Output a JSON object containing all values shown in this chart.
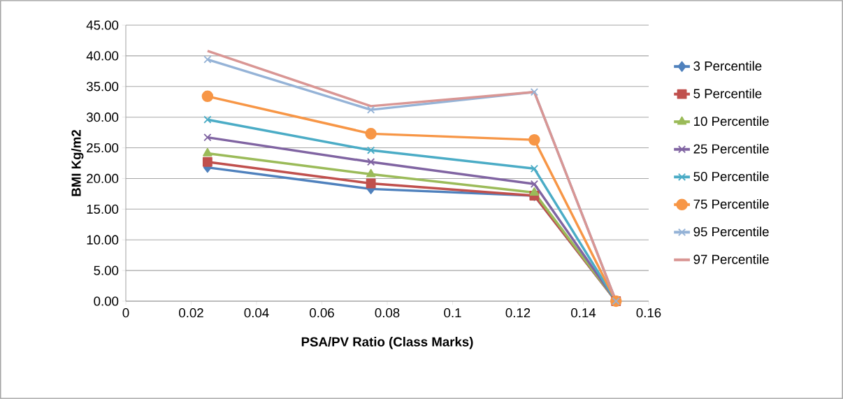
{
  "chart_data": {
    "type": "line",
    "xlabel": "PSA/PV Ratio (Class Marks)",
    "ylabel": "BMI Kg/m2",
    "x": [
      0.025,
      0.075,
      0.125,
      0.15
    ],
    "xlim": [
      0,
      0.16
    ],
    "xticks": [
      0,
      0.02,
      0.04,
      0.06,
      0.08,
      0.1,
      0.12,
      0.14,
      0.16
    ],
    "ylim": [
      0,
      45
    ],
    "yticks": [
      {
        "value": 0,
        "label": "0.00"
      },
      {
        "value": 5,
        "label": "5.00"
      },
      {
        "value": 10,
        "label": "10.00"
      },
      {
        "value": 15,
        "label": "15.00"
      },
      {
        "value": 20,
        "label": "20.00"
      },
      {
        "value": 25,
        "label": "25.00"
      },
      {
        "value": 30,
        "label": "30.00"
      },
      {
        "value": 35,
        "label": "35.00"
      },
      {
        "value": 40,
        "label": "40.00"
      },
      {
        "value": 45,
        "label": "45.00"
      }
    ],
    "grid": "y",
    "legend": "right",
    "series": [
      {
        "name": "3 Percentile",
        "color": "#4f81bd",
        "marker": "diamond",
        "values": [
          21.8,
          18.3,
          17.2,
          0
        ]
      },
      {
        "name": "5 Percentile",
        "color": "#c0504d",
        "marker": "square",
        "values": [
          22.7,
          19.2,
          17.2,
          0
        ]
      },
      {
        "name": "10 Percentile",
        "color": "#9bbb59",
        "marker": "triangle",
        "values": [
          24.1,
          20.7,
          17.7,
          0
        ]
      },
      {
        "name": "25 Percentile",
        "color": "#8064a2",
        "marker": "cross",
        "values": [
          26.7,
          22.7,
          19.1,
          0
        ]
      },
      {
        "name": "50 Percentile",
        "color": "#4bacc6",
        "marker": "cross",
        "values": [
          29.6,
          24.6,
          21.6,
          0
        ]
      },
      {
        "name": "75 Percentile",
        "color": "#f79646",
        "marker": "circle",
        "values": [
          33.4,
          27.3,
          26.3,
          0
        ]
      },
      {
        "name": "95 Percentile",
        "color": "#95b3d7",
        "marker": "cross",
        "values": [
          39.4,
          31.2,
          34.1,
          0
        ]
      },
      {
        "name": "97 Percentile",
        "color": "#d99694",
        "marker": "none",
        "values": [
          40.8,
          31.8,
          34.1,
          0
        ]
      }
    ]
  }
}
